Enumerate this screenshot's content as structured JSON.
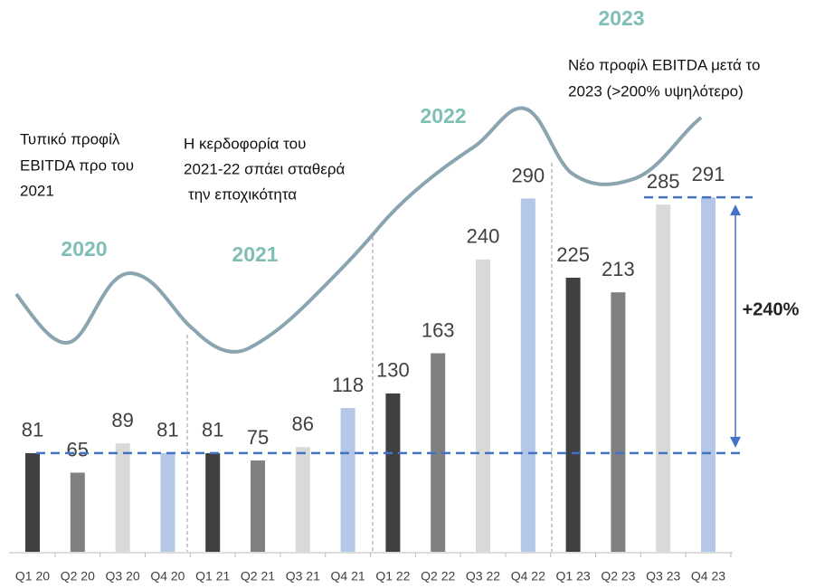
{
  "chart_data": {
    "type": "bar",
    "categories": [
      "Q1 20",
      "Q2 20",
      "Q3 20",
      "Q4 20",
      "Q1 21",
      "Q2 21",
      "Q3 21",
      "Q4 21",
      "Q1 22",
      "Q2 22",
      "Q3 22",
      "Q4 22",
      "Q1 23",
      "Q2 23",
      "Q3 23",
      "Q4 23"
    ],
    "values": [
      81,
      65,
      89,
      81,
      81,
      75,
      86,
      118,
      130,
      163,
      240,
      290,
      225,
      213,
      285,
      291
    ],
    "colors": [
      "#404040",
      "#808080",
      "#d9d9d9",
      "#b4c7e7",
      "#404040",
      "#808080",
      "#d9d9d9",
      "#b4c7e7",
      "#404040",
      "#808080",
      "#d9d9d9",
      "#b4c7e7",
      "#404040",
      "#808080",
      "#d9d9d9",
      "#b4c7e7"
    ],
    "ylim": [
      0,
      300
    ],
    "annotations": {
      "years": [
        "2020",
        "2021",
        "2022",
        "2023"
      ],
      "note_2020": [
        "Τυπικό προφίλ",
        "EBITDA προ του",
        "2021"
      ],
      "note_2021": [
        "Η κερδοφορία του",
        "2021-22 σπάει σταθερά",
        "την εποχικότητα"
      ],
      "note_2023": [
        "Νέο προφίλ EBITDA μετά το",
        "2023 (>200% υψηλότερο)"
      ],
      "growth": "+240%"
    }
  }
}
